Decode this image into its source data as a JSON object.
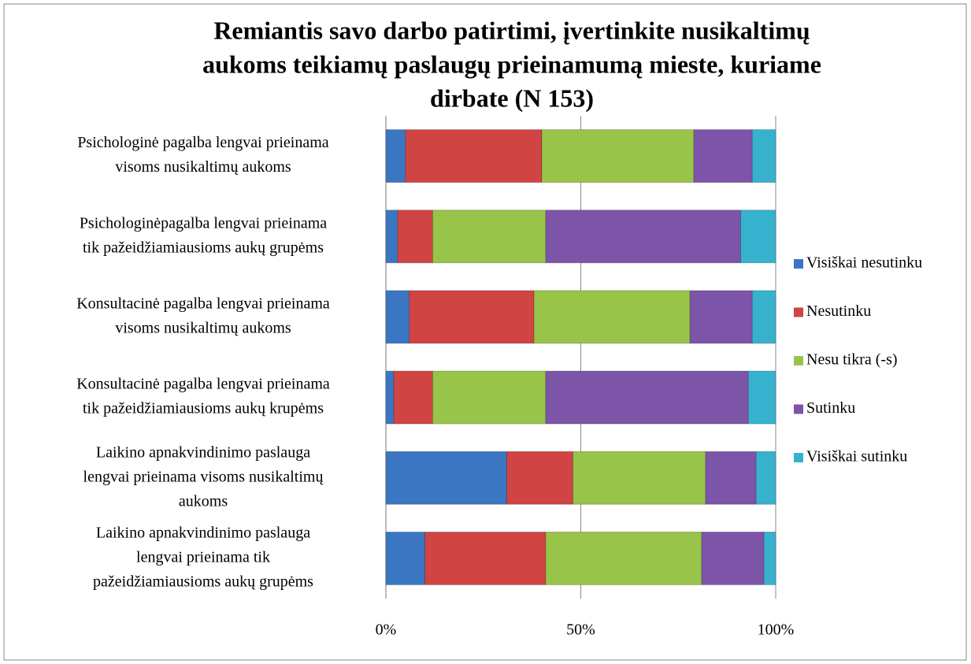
{
  "chart_data": {
    "type": "stacked_barh",
    "title": [
      "Remiantis savo darbo patirtimi, įvertinkite nusikaltimų",
      "aukoms teikiamų paslaugų prieinamumą mieste, kuriame",
      "dirbate (N 153)"
    ],
    "categories": [
      [
        "Psichologinė pagalba lengvai prieinama",
        "visoms nusikaltimų aukoms"
      ],
      [
        "Psichologinėpagalba lengvai prieinama",
        "tik pažeidžiamiausioms aukų grupėms"
      ],
      [
        "Konsultacinė pagalba lengvai prieinama",
        "visoms nusikaltimų aukoms"
      ],
      [
        "Konsultacinė pagalba lengvai prieinama",
        "tik pažeidžiamiausioms aukų krupėms"
      ],
      [
        "Laikino apnakvindinimo paslauga",
        "lengvai prieinama visoms nusikaltimų",
        "aukoms"
      ],
      [
        "Laikino apnakvindinimo paslauga",
        "lengvai prieinama tik",
        "pažeidžiamiausioms aukų grupėms"
      ]
    ],
    "series": [
      {
        "name": "Visiškai nesutinku",
        "color": "#3b76c2",
        "values": [
          5,
          3,
          6,
          2,
          31,
          10
        ]
      },
      {
        "name": "Nesutinku",
        "color": "#d04444",
        "values": [
          35,
          9,
          32,
          10,
          17,
          31
        ]
      },
      {
        "name": "Nesu tikra (-s)",
        "color": "#98c44a",
        "values": [
          39,
          29,
          40,
          29,
          34,
          40
        ]
      },
      {
        "name": "Sutinku",
        "color": "#7c54a8",
        "values": [
          15,
          50,
          16,
          52,
          13,
          16
        ]
      },
      {
        "name": "Visiškai sutinku",
        "color": "#36b2cf",
        "values": [
          6,
          9,
          6,
          7,
          5,
          3
        ]
      }
    ],
    "xlim": [
      0,
      100
    ],
    "xticks": [
      {
        "value": 0,
        "label": "0%"
      },
      {
        "value": 50,
        "label": "50%"
      },
      {
        "value": 100,
        "label": "100%"
      }
    ],
    "grid": true,
    "legend": "right"
  }
}
